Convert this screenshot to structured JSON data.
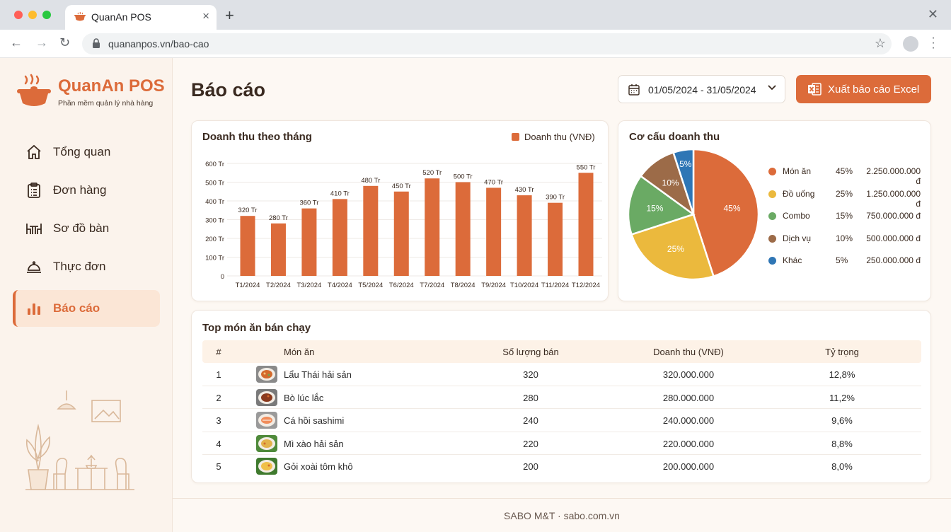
{
  "browser": {
    "tab_title": "QuanAn POS",
    "url": "quananpos.vn/bao-cao"
  },
  "brand": {
    "name": "QuanAn POS",
    "tagline": "Phần mềm quản lý nhà hàng",
    "accent": "#dc6b3a"
  },
  "sidebar": {
    "items": [
      {
        "label": "Tổng quan",
        "icon": "home-icon"
      },
      {
        "label": "Đơn hàng",
        "icon": "clipboard-icon"
      },
      {
        "label": "Sơ đồ bàn",
        "icon": "table-icon"
      },
      {
        "label": "Thực đơn",
        "icon": "cloche-icon"
      },
      {
        "label": "Báo cáo",
        "icon": "bar-chart-icon",
        "active": true
      }
    ]
  },
  "header": {
    "title": "Báo cáo",
    "date_range": "01/05/2024 - 31/05/2024",
    "export_label": "Xuất báo cáo Excel"
  },
  "bar_card": {
    "title": "Doanh thu theo tháng",
    "legend": "Doanh thu (VNĐ)"
  },
  "pie_card": {
    "title": "Cơ cấu doanh thu"
  },
  "chart_data": [
    {
      "type": "bar",
      "title": "Doanh thu theo tháng",
      "categories": [
        "T1/2024",
        "T2/2024",
        "T3/2024",
        "T4/2024",
        "T5/2024",
        "T6/2024",
        "T7/2024",
        "T8/2024",
        "T9/2024",
        "T10/2024",
        "T11/2024",
        "T12/2024"
      ],
      "series": [
        {
          "name": "Doanh thu (VNĐ)",
          "values": [
            320,
            280,
            360,
            410,
            480,
            450,
            520,
            500,
            470,
            430,
            390,
            550
          ],
          "color": "#dc6b3a"
        }
      ],
      "value_labels": [
        "320 Tr",
        "280 Tr",
        "360 Tr",
        "410 Tr",
        "480 Tr",
        "450 Tr",
        "520 Tr",
        "500 Tr",
        "470 Tr",
        "430 Tr",
        "390 Tr",
        "550 Tr"
      ],
      "yticks": [
        "0",
        "100 Tr",
        "200 Tr",
        "300 Tr",
        "400 Tr",
        "500 Tr",
        "600 Tr"
      ],
      "ylim": [
        0,
        600
      ],
      "grid": true,
      "legend": "top-right"
    },
    {
      "type": "pie",
      "title": "Cơ cấu doanh thu",
      "slices": [
        {
          "name": "Món ăn",
          "value": 45,
          "label": "45%",
          "amount": "2.250.000.000 đ",
          "color": "#dc6b3a"
        },
        {
          "name": "Đồ uống",
          "value": 25,
          "label": "25%",
          "amount": "1.250.000.000 đ",
          "color": "#ebb93d"
        },
        {
          "name": "Combo",
          "value": 15,
          "label": "15%",
          "amount": "750.000.000 đ",
          "color": "#6aaa64"
        },
        {
          "name": "Dịch vụ",
          "value": 10,
          "label": "10%",
          "amount": "500.000.000 đ",
          "color": "#9c6b48"
        },
        {
          "name": "Khác",
          "value": 5,
          "label": "5%",
          "amount": "250.000.000 đ",
          "color": "#2f76b5"
        }
      ],
      "legend": "right"
    }
  ],
  "top_dishes": {
    "title": "Top món ăn bán chạy",
    "headers": {
      "num": "#",
      "name": "Món ăn",
      "qty": "Số lượng bán",
      "revenue": "Doanh thu (VNĐ)",
      "share": "Tỷ trọng"
    },
    "rows": [
      {
        "num": "1",
        "name": "Lẩu Thái hải sản",
        "qty": "320",
        "revenue": "320.000.000",
        "share": "12,8%"
      },
      {
        "num": "2",
        "name": "Bò lúc lắc",
        "qty": "280",
        "revenue": "280.000.000",
        "share": "11,2%"
      },
      {
        "num": "3",
        "name": "Cá hồi sashimi",
        "qty": "240",
        "revenue": "240.000.000",
        "share": "9,6%"
      },
      {
        "num": "4",
        "name": "Mì xào hải sản",
        "qty": "220",
        "revenue": "220.000.000",
        "share": "8,8%"
      },
      {
        "num": "5",
        "name": "Gỏi xoài tôm khô",
        "qty": "200",
        "revenue": "200.000.000",
        "share": "8,0%"
      }
    ]
  },
  "footer": {
    "text": "SABO M&T · sabo.com.vn"
  }
}
